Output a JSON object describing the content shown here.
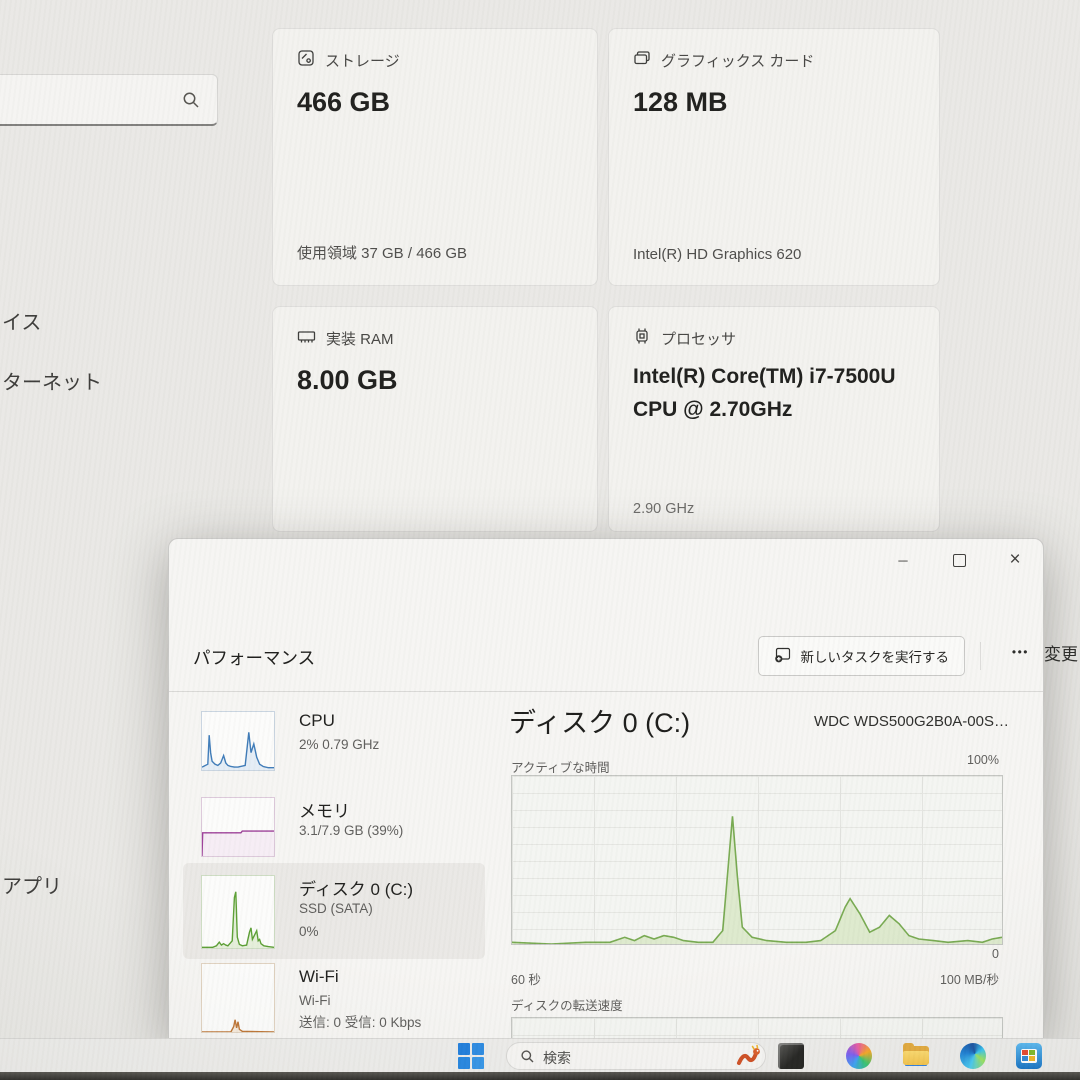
{
  "settings": {
    "nav_items": [
      "イス",
      "ターネット",
      "アプリ"
    ],
    "cards": [
      {
        "title": "ストレージ",
        "value": "466 GB",
        "detail": "使用領域 37 GB / 466 GB"
      },
      {
        "title": "グラフィックス カード",
        "value": "128 MB",
        "detail": "Intel(R) HD Graphics 620"
      },
      {
        "title": "実装 RAM",
        "value": "8.00 GB",
        "detail": ""
      },
      {
        "title": "プロセッサ",
        "value": "Intel(R) Core(TM) i7-7500U CPU @ 2.70GHz",
        "detail": "2.90 GHz"
      }
    ],
    "edge_label": "変更"
  },
  "task_manager": {
    "page_title": "パフォーマンス",
    "run_task_label": "新しいタスクを実行する",
    "sidebar": [
      {
        "title": "CPU",
        "sub": "2% 0.79 GHz"
      },
      {
        "title": "メモリ",
        "sub": "3.1/7.9 GB (39%)"
      },
      {
        "title": "ディスク 0 (C:)",
        "sub": "SSD (SATA)",
        "sub2": "0%"
      },
      {
        "title": "Wi-Fi",
        "sub": "Wi-Fi",
        "sub2": "送信: 0 受信: 0 Kbps"
      }
    ],
    "main": {
      "title": "ディスク 0 (C:)",
      "device": "WDC WDS500G2B0A-00S…",
      "graph_label": "アクティブな時間",
      "y_max": "100%",
      "y_min": "0",
      "x_left": "60 秒",
      "x_right": "100 MB/秒",
      "bottom_label": "ディスクの転送速度"
    }
  },
  "taskbar": {
    "search_label": "検索"
  },
  "glyphs": {
    "minimize": "─",
    "close": "×",
    "more": "•••"
  },
  "colors": {
    "cpu_accent": "#3d7ab8",
    "memory_accent": "#9b3d97",
    "disk_accent": "#76a94f",
    "wifi_accent": "#bd7434",
    "windows_blue": "#2586e0"
  },
  "chart_data": {
    "type": "area",
    "charts": {
      "cpu_spark": {
        "color": "#3d7ab8",
        "fill": "#e4edf6",
        "stroke": 1.4,
        "ylim": [
          0,
          100
        ],
        "points": [
          [
            0,
            5
          ],
          [
            8,
            10
          ],
          [
            10,
            60
          ],
          [
            12,
            30
          ],
          [
            14,
            15
          ],
          [
            18,
            10
          ],
          [
            22,
            8
          ],
          [
            26,
            12
          ],
          [
            30,
            25
          ],
          [
            33,
            12
          ],
          [
            36,
            8
          ],
          [
            40,
            6
          ],
          [
            45,
            5
          ],
          [
            50,
            5
          ],
          [
            60,
            8
          ],
          [
            65,
            65
          ],
          [
            68,
            30
          ],
          [
            72,
            45
          ],
          [
            76,
            22
          ],
          [
            80,
            10
          ],
          [
            85,
            6
          ],
          [
            92,
            4
          ],
          [
            100,
            4
          ]
        ]
      },
      "mem_spark": {
        "color": "#9b3d97",
        "fill": "#f6edf5",
        "stroke": 1.4,
        "ylim": [
          0,
          100
        ],
        "points": [
          [
            0,
            0
          ],
          [
            1,
            40
          ],
          [
            54,
            40
          ],
          [
            56,
            43
          ],
          [
            100,
            43
          ]
        ]
      },
      "disk_spark": {
        "color": "#5a9e32",
        "fill": "#e5efda",
        "stroke": 1.4,
        "ylim": [
          0,
          100
        ],
        "points": [
          [
            0,
            1
          ],
          [
            15,
            1
          ],
          [
            20,
            3
          ],
          [
            24,
            8
          ],
          [
            27,
            4
          ],
          [
            30,
            6
          ],
          [
            33,
            4
          ],
          [
            36,
            3
          ],
          [
            42,
            10
          ],
          [
            45,
            70
          ],
          [
            47,
            78
          ],
          [
            49,
            15
          ],
          [
            52,
            5
          ],
          [
            56,
            3
          ],
          [
            62,
            4
          ],
          [
            66,
            22
          ],
          [
            68,
            28
          ],
          [
            70,
            12
          ],
          [
            74,
            20
          ],
          [
            76,
            24
          ],
          [
            78,
            10
          ],
          [
            80,
            12
          ],
          [
            82,
            6
          ],
          [
            86,
            3
          ],
          [
            92,
            2
          ],
          [
            100,
            1
          ]
        ]
      },
      "wifi_spark": {
        "color": "#bd7434",
        "fill": "#f5e9db",
        "stroke": 1.4,
        "ylim": [
          0,
          100
        ],
        "points": [
          [
            0,
            0
          ],
          [
            40,
            0
          ],
          [
            44,
            8
          ],
          [
            46,
            18
          ],
          [
            48,
            6
          ],
          [
            50,
            15
          ],
          [
            52,
            4
          ],
          [
            56,
            1
          ],
          [
            100,
            0
          ]
        ]
      },
      "disk_main": {
        "color": "#76a94f",
        "fill": "#dde9cd",
        "stroke": 1.6,
        "ylim": [
          0,
          100
        ],
        "points": [
          [
            0,
            1
          ],
          [
            8,
            0
          ],
          [
            15,
            1
          ],
          [
            20,
            1
          ],
          [
            23,
            4
          ],
          [
            25,
            2
          ],
          [
            27,
            5
          ],
          [
            29,
            3
          ],
          [
            31,
            5
          ],
          [
            33,
            4
          ],
          [
            35,
            2
          ],
          [
            38,
            1
          ],
          [
            41,
            1
          ],
          [
            43,
            8
          ],
          [
            45,
            76
          ],
          [
            46,
            40
          ],
          [
            47,
            10
          ],
          [
            49,
            4
          ],
          [
            52,
            2
          ],
          [
            56,
            1
          ],
          [
            60,
            1
          ],
          [
            63,
            2
          ],
          [
            66,
            8
          ],
          [
            68,
            22
          ],
          [
            69,
            27
          ],
          [
            71,
            18
          ],
          [
            73,
            7
          ],
          [
            75,
            10
          ],
          [
            77,
            17
          ],
          [
            79,
            12
          ],
          [
            81,
            5
          ],
          [
            83,
            3
          ],
          [
            86,
            2
          ],
          [
            89,
            1
          ],
          [
            93,
            2
          ],
          [
            96,
            1
          ],
          [
            98,
            3
          ],
          [
            100,
            4
          ]
        ]
      },
      "disk_transfer": {
        "color": "#76a94f",
        "fill": "#eef4e6",
        "stroke": 1.4,
        "ylim": [
          0,
          100
        ],
        "points": [
          [
            0,
            0
          ],
          [
            100,
            0
          ]
        ]
      }
    }
  }
}
